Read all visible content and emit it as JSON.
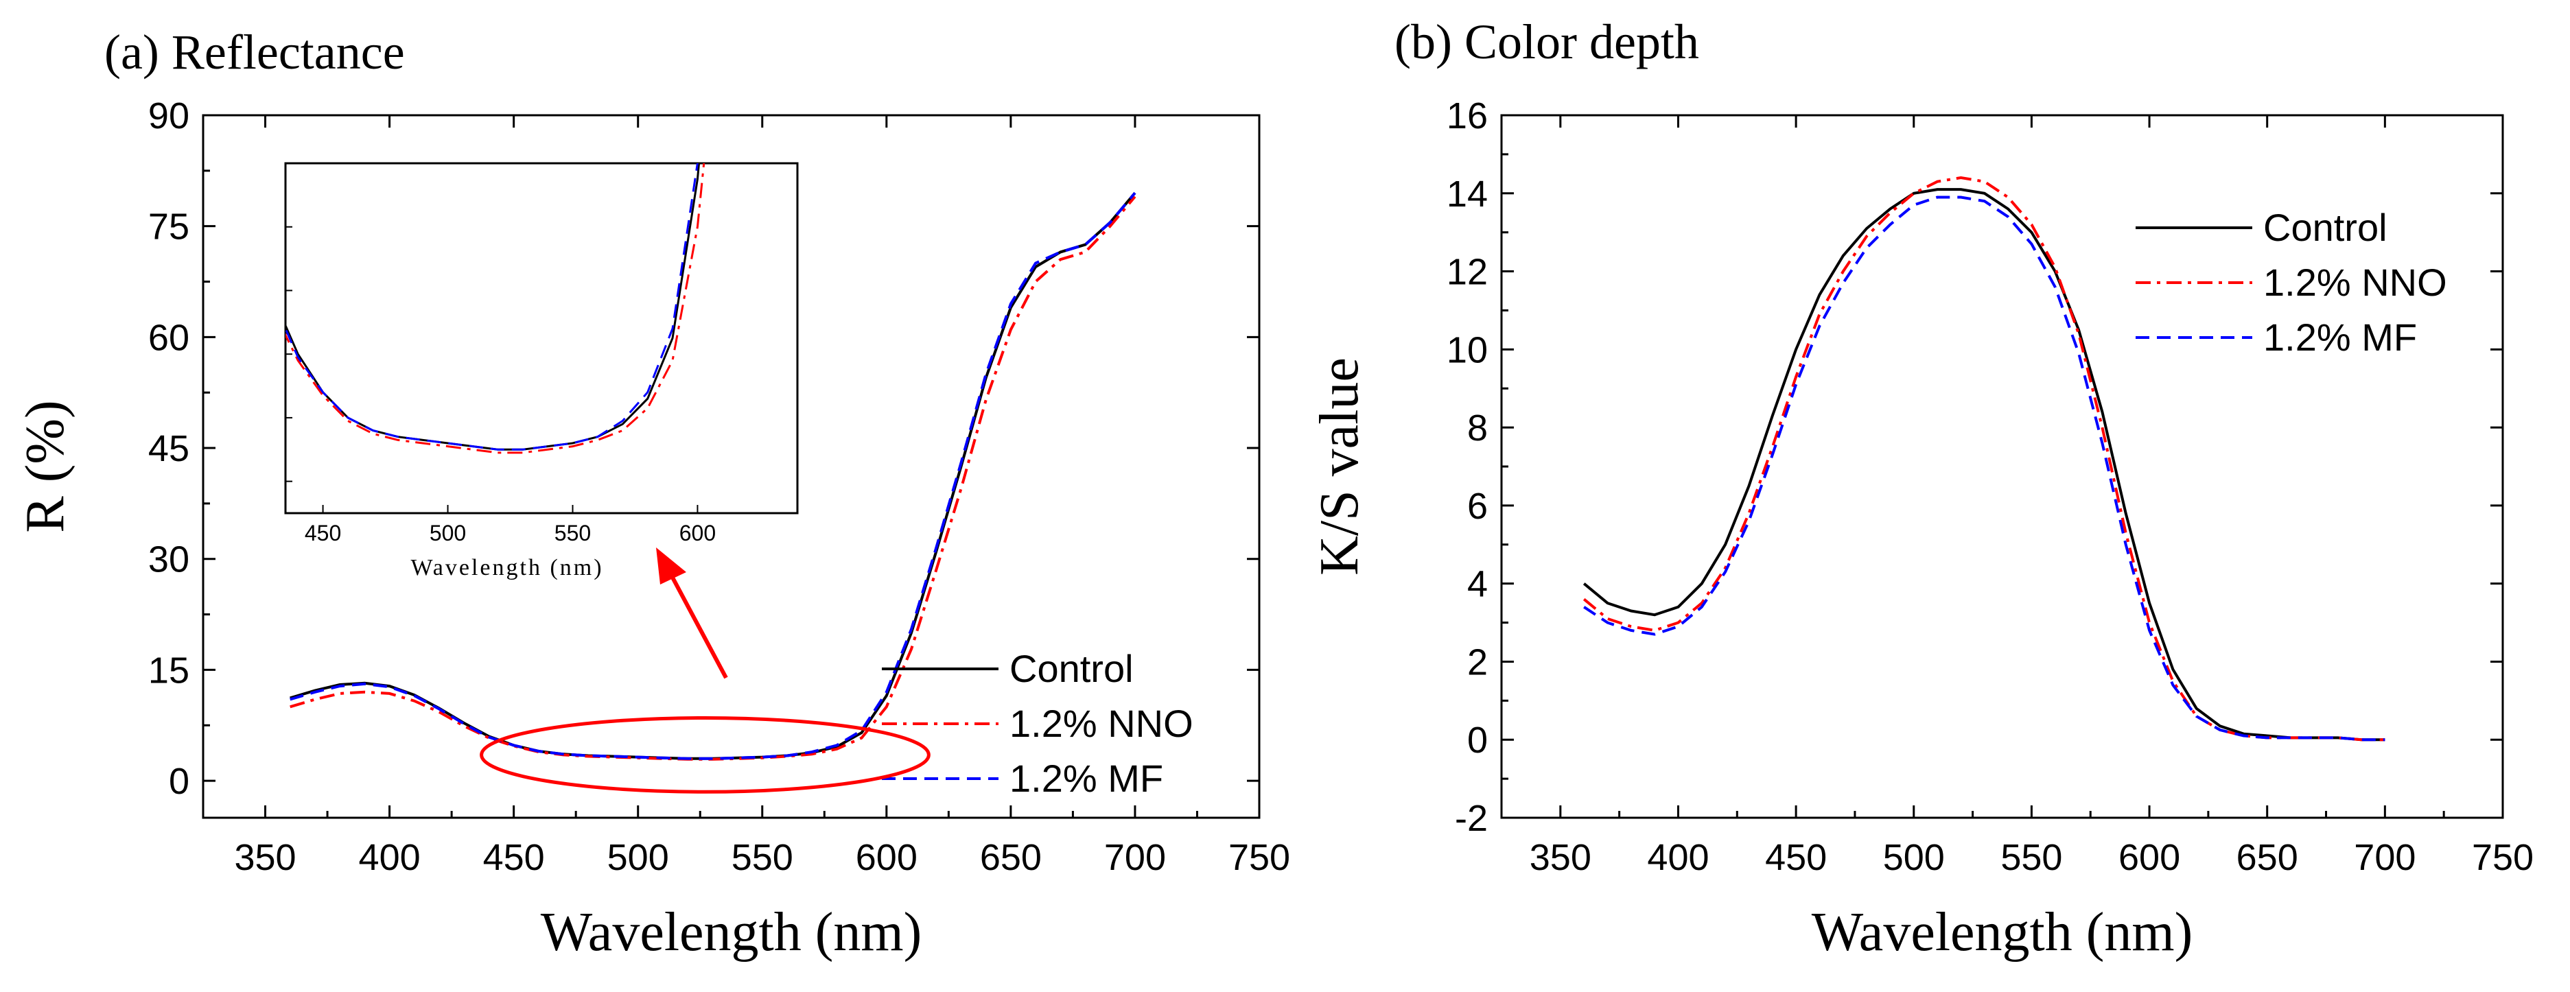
{
  "chart_data": [
    {
      "panel_label": "(a) Reflectance",
      "type": "line",
      "xlabel": "Wavelength (nm)",
      "ylabel": "R (%)",
      "xlim": [
        325,
        750
      ],
      "ylim": [
        -5,
        90
      ],
      "xticks": [
        350,
        400,
        450,
        500,
        550,
        600,
        650,
        700,
        750
      ],
      "yticks": [
        0,
        15,
        30,
        45,
        60,
        75,
        90
      ],
      "legend_position": "bottom-right",
      "series": [
        {
          "name": "Control",
          "color": "#000000",
          "dash": "solid",
          "x": [
            360,
            370,
            380,
            390,
            400,
            410,
            420,
            430,
            440,
            450,
            460,
            470,
            480,
            490,
            500,
            510,
            520,
            530,
            540,
            550,
            560,
            570,
            580,
            590,
            600,
            610,
            620,
            630,
            640,
            650,
            660,
            670,
            680,
            690,
            700
          ],
          "y": [
            11.2,
            12.2,
            13.0,
            13.2,
            12.8,
            11.6,
            9.8,
            7.8,
            6.0,
            4.8,
            4.0,
            3.6,
            3.4,
            3.3,
            3.2,
            3.1,
            3.0,
            3.0,
            3.1,
            3.2,
            3.4,
            3.8,
            4.6,
            6.5,
            11.5,
            20.0,
            31.0,
            42.5,
            54.5,
            64.0,
            69.5,
            71.5,
            72.5,
            75.5,
            79.5
          ]
        },
        {
          "name": "1.2% NNO",
          "color": "#ff0000",
          "dash": "dashdot",
          "x": [
            360,
            370,
            380,
            390,
            400,
            410,
            420,
            430,
            440,
            450,
            460,
            470,
            480,
            490,
            500,
            510,
            520,
            530,
            540,
            550,
            560,
            570,
            580,
            590,
            600,
            610,
            620,
            630,
            640,
            650,
            660,
            670,
            680,
            690,
            700
          ],
          "y": [
            10.0,
            11.0,
            11.8,
            12.0,
            11.8,
            10.8,
            9.3,
            7.4,
            5.8,
            4.7,
            3.9,
            3.5,
            3.3,
            3.2,
            3.1,
            3.0,
            2.9,
            2.9,
            3.0,
            3.1,
            3.3,
            3.6,
            4.3,
            5.8,
            10.0,
            17.8,
            28.5,
            39.5,
            51.5,
            61.0,
            67.5,
            70.5,
            71.5,
            75.0,
            79.0
          ]
        },
        {
          "name": "1.2% MF",
          "color": "#0000ff",
          "dash": "dash",
          "x": [
            360,
            370,
            380,
            390,
            400,
            410,
            420,
            430,
            440,
            450,
            460,
            470,
            480,
            490,
            500,
            510,
            520,
            530,
            540,
            550,
            560,
            570,
            580,
            590,
            600,
            610,
            620,
            630,
            640,
            650,
            660,
            670,
            680,
            690,
            700
          ],
          "y": [
            11.0,
            12.0,
            12.8,
            13.1,
            12.7,
            11.5,
            9.7,
            7.7,
            5.9,
            4.8,
            4.0,
            3.6,
            3.4,
            3.3,
            3.2,
            3.1,
            3.0,
            3.0,
            3.1,
            3.2,
            3.4,
            3.9,
            4.8,
            6.8,
            12.0,
            20.5,
            31.5,
            43.0,
            55.0,
            64.5,
            70.0,
            71.5,
            72.5,
            75.5,
            79.5
          ]
        }
      ],
      "annotation": {
        "type": "ellipse",
        "color": "#ff0000",
        "center_x": 527,
        "center_y": 3.5,
        "rx": 90,
        "ry": 5
      },
      "inset": {
        "xlabel": "Wavelength (nm)",
        "xlim": [
          435,
          640
        ],
        "ylim": [
          1.0,
          12.0
        ],
        "xticks": [
          450,
          500,
          550,
          600
        ]
      }
    },
    {
      "panel_label": "(b) Color depth",
      "type": "line",
      "xlabel": "Wavelength (nm)",
      "ylabel": "K/S value",
      "xlim": [
        325,
        750
      ],
      "ylim": [
        -2,
        16
      ],
      "xticks": [
        350,
        400,
        450,
        500,
        550,
        600,
        650,
        700,
        750
      ],
      "yticks": [
        -2,
        0,
        2,
        4,
        6,
        8,
        10,
        12,
        14,
        16
      ],
      "legend_position": "top-right",
      "series": [
        {
          "name": "Control",
          "color": "#000000",
          "dash": "solid",
          "x": [
            360,
            370,
            380,
            390,
            400,
            410,
            420,
            430,
            440,
            450,
            460,
            470,
            480,
            490,
            500,
            510,
            520,
            530,
            540,
            550,
            560,
            570,
            580,
            590,
            600,
            610,
            620,
            630,
            640,
            650,
            660,
            670,
            680,
            690,
            700
          ],
          "y": [
            4.0,
            3.5,
            3.3,
            3.2,
            3.4,
            4.0,
            5.0,
            6.5,
            8.3,
            10.0,
            11.4,
            12.4,
            13.1,
            13.6,
            14.0,
            14.1,
            14.1,
            14.0,
            13.6,
            13.0,
            12.0,
            10.5,
            8.4,
            5.8,
            3.5,
            1.8,
            0.8,
            0.35,
            0.15,
            0.1,
            0.05,
            0.05,
            0.05,
            0.0,
            0.0
          ]
        },
        {
          "name": "1.2% NNO",
          "color": "#ff0000",
          "dash": "dashdot",
          "x": [
            360,
            370,
            380,
            390,
            400,
            410,
            420,
            430,
            440,
            450,
            460,
            470,
            480,
            490,
            500,
            510,
            520,
            530,
            540,
            550,
            560,
            570,
            580,
            590,
            600,
            610,
            620,
            630,
            640,
            650,
            660,
            670,
            680,
            690,
            700
          ],
          "y": [
            3.6,
            3.1,
            2.9,
            2.8,
            3.0,
            3.5,
            4.4,
            5.8,
            7.5,
            9.3,
            10.9,
            12.0,
            12.9,
            13.5,
            14.0,
            14.3,
            14.4,
            14.3,
            13.9,
            13.2,
            12.1,
            10.4,
            8.0,
            5.3,
            3.0,
            1.5,
            0.6,
            0.25,
            0.1,
            0.05,
            0.05,
            0.05,
            0.05,
            0.0,
            0.0
          ]
        },
        {
          "name": "1.2% MF",
          "color": "#0000ff",
          "dash": "dash",
          "x": [
            360,
            370,
            380,
            390,
            400,
            410,
            420,
            430,
            440,
            450,
            460,
            470,
            480,
            490,
            500,
            510,
            520,
            530,
            540,
            550,
            560,
            570,
            580,
            590,
            600,
            610,
            620,
            630,
            640,
            650,
            660,
            670,
            680,
            690,
            700
          ],
          "y": [
            3.4,
            3.0,
            2.8,
            2.7,
            2.9,
            3.4,
            4.3,
            5.6,
            7.3,
            9.1,
            10.6,
            11.7,
            12.6,
            13.2,
            13.7,
            13.9,
            13.9,
            13.8,
            13.4,
            12.7,
            11.6,
            9.9,
            7.6,
            5.0,
            2.8,
            1.4,
            0.6,
            0.25,
            0.1,
            0.05,
            0.05,
            0.05,
            0.05,
            0.0,
            0.0
          ]
        }
      ]
    }
  ]
}
